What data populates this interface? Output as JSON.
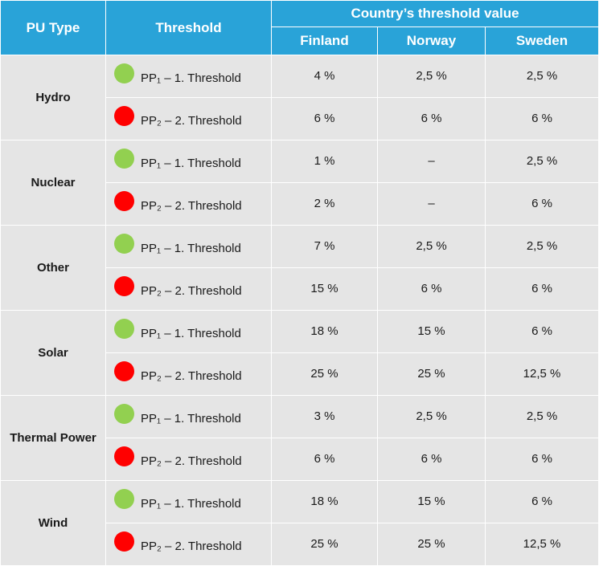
{
  "colors": {
    "header_bg": "#29a3d8",
    "cell_bg": "#e5e5e5",
    "dot_first": "#92d050",
    "dot_second": "#ff0000"
  },
  "headers": {
    "pu_type": "PU Type",
    "threshold": "Threshold",
    "group": "Country’s threshold value",
    "countries": [
      "Finland",
      "Norway",
      "Sweden"
    ]
  },
  "threshold_labels": {
    "first": "PP₁ – 1. Threshold",
    "second": "PP₂ – 2. Threshold"
  },
  "rows": [
    {
      "type": "Hydro",
      "first": [
        "4 %",
        "2,5 %",
        "2,5 %"
      ],
      "second": [
        "6 %",
        "6 %",
        "6 %"
      ]
    },
    {
      "type": "Nuclear",
      "first": [
        "1 %",
        "–",
        "2,5 %"
      ],
      "second": [
        "2 %",
        "–",
        "6 %"
      ]
    },
    {
      "type": "Other",
      "first": [
        "7 %",
        "2,5 %",
        "2,5 %"
      ],
      "second": [
        "15 %",
        "6 %",
        "6 %"
      ]
    },
    {
      "type": "Solar",
      "first": [
        "18 %",
        "15 %",
        "6 %"
      ],
      "second": [
        "25 %",
        "25 %",
        "12,5 %"
      ]
    },
    {
      "type": "Thermal Power",
      "first": [
        "3 %",
        "2,5 %",
        "2,5 %"
      ],
      "second": [
        "6 %",
        "6 %",
        "6 %"
      ]
    },
    {
      "type": "Wind",
      "first": [
        "18 %",
        "15 %",
        "6 %"
      ],
      "second": [
        "25 %",
        "25 %",
        "12,5 %"
      ]
    }
  ]
}
